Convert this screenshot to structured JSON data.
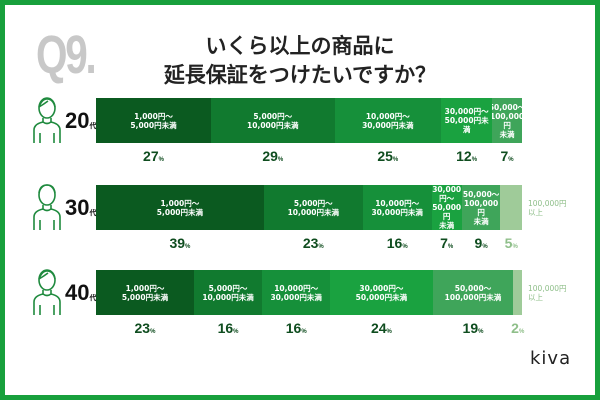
{
  "question_number": "Q9.",
  "title_line1": "いくら以上の商品に",
  "title_line2": "延長保証をつけたいですか？",
  "logo": "kiva",
  "colors": [
    "#0b5a20",
    "#117a2f",
    "#16903a",
    "#1aa240",
    "#3fa55a",
    "#9fcb99"
  ],
  "chart_data": {
    "type": "bar",
    "stacked": true,
    "orientation": "horizontal",
    "unit": "%",
    "age_suffix": "代",
    "categories": [
      "1,000円〜\n5,000円未満",
      "5,000円〜\n10,000円未満",
      "10,000円〜\n30,000円未満",
      "30,000円〜\n50,000円未満",
      "50,000〜\n100,000円未満",
      "100,000円\n以上"
    ],
    "rows": [
      {
        "age": "20",
        "icon": "person-female-icon",
        "values": [
          27,
          29,
          25,
          12,
          7
        ],
        "labels": [
          "1,000円〜\n5,000円未満",
          "5,000円〜\n10,000円未満",
          "10,000円〜\n30,000円未満",
          "30,000円〜\n50,000円未満",
          "50,000〜\n100,000円\n未満"
        ]
      },
      {
        "age": "30",
        "icon": "person-male-icon",
        "values": [
          39,
          23,
          16,
          7,
          9,
          5
        ],
        "labels": [
          "1,000円〜\n5,000円未満",
          "5,000円〜\n10,000円未満",
          "10,000円〜\n30,000円未満",
          "30,000円〜\n50,000円\n未満",
          "50,000〜\n100,000円\n未満",
          ""
        ],
        "outside_label": "100,000円\n以上"
      },
      {
        "age": "40",
        "icon": "person-female-icon",
        "values": [
          23,
          16,
          16,
          24,
          19,
          2
        ],
        "labels": [
          "1,000円〜\n5,000円未満",
          "5,000円〜\n10,000円未満",
          "10,000円〜\n30,000円未満",
          "30,000円〜\n50,000円未満",
          "50,000〜\n100,000円未満",
          ""
        ],
        "outside_label": "100,000円\n以上"
      }
    ]
  }
}
